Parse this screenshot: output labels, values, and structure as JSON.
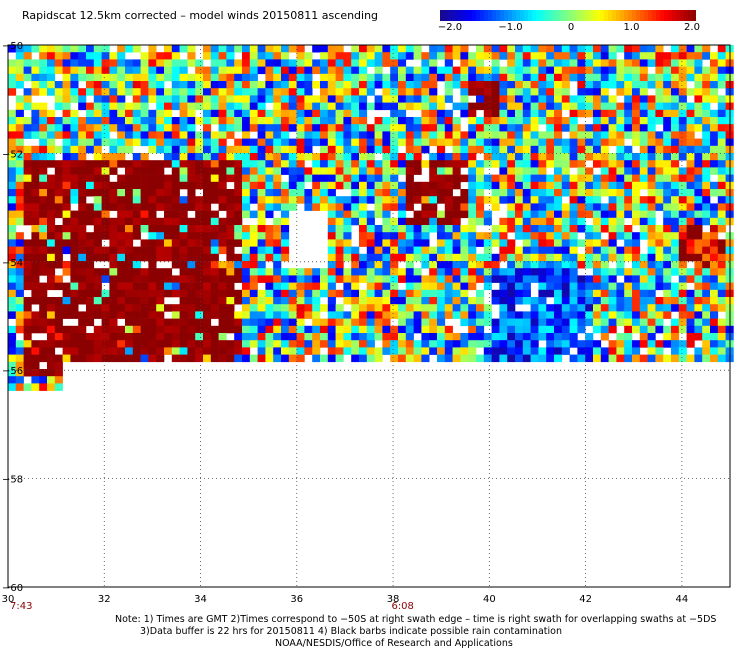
{
  "title": "Rapidscat 12.5km corrected – model winds 20150811 ascending",
  "colorbar": {
    "ticks": [
      "−2.0",
      "−1.0",
      "0",
      "1.0",
      "2.0"
    ],
    "tick_values": [
      -2.0,
      -1.0,
      0.0,
      1.0,
      2.0
    ],
    "colors": [
      "#1a0a8c",
      "#0000ff",
      "#0080ff",
      "#00ffff",
      "#80ff80",
      "#ffff00",
      "#ff8000",
      "#ff0000",
      "#8b0000"
    ]
  },
  "chart_data": {
    "type": "heatmap",
    "xlabel": "",
    "ylabel": "",
    "x_ticks": [
      "30",
      "32",
      "34",
      "36",
      "38",
      "40",
      "42",
      "44"
    ],
    "y_ticks": [
      "−50",
      "−52",
      "−54",
      "−56",
      "−58",
      "−60"
    ],
    "xlim": [
      30,
      45
    ],
    "ylim": [
      -60,
      -50
    ],
    "value_range": [
      -2.0,
      2.0
    ],
    "grid": "dotted",
    "time_labels": [
      {
        "lon": 30,
        "label": "7:43"
      },
      {
        "lon": 38.2,
        "label": "6:08"
      }
    ],
    "regions": [
      {
        "name": "",
        "lon": [
          30.2,
          34.8
        ],
        "lat": [
          -56.0,
          -52.0
        ],
        "value": 2.0
      },
      {
        "name": "",
        "lon": [
          38.2,
          39.5
        ],
        "lat": [
          -53.2,
          -52.0
        ],
        "value": 2.0
      },
      {
        "name": "",
        "lon": [
          39.5,
          40.2
        ],
        "lat": [
          -51.2,
          -50.6
        ],
        "value": 2.0
      },
      {
        "name": "",
        "lon": [
          43.8,
          44.8
        ],
        "lat": [
          -54.0,
          -53.3
        ],
        "value": 1.6
      },
      {
        "name": "",
        "lon": [
          40.0,
          42.0
        ],
        "lat": [
          -56.0,
          -54.0
        ],
        "value": -1.2
      }
    ]
  },
  "notes": [
    "Note: 1) Times are GMT 2)Times correspond to −50S at right swath edge – time is right swath for overlapping swaths at −5DS",
    "3)Data buffer is 22 hrs for 20150811 4) Black barbs indicate possible rain contamination",
    "NOAA/NESDIS/Office of Research and Applications"
  ]
}
